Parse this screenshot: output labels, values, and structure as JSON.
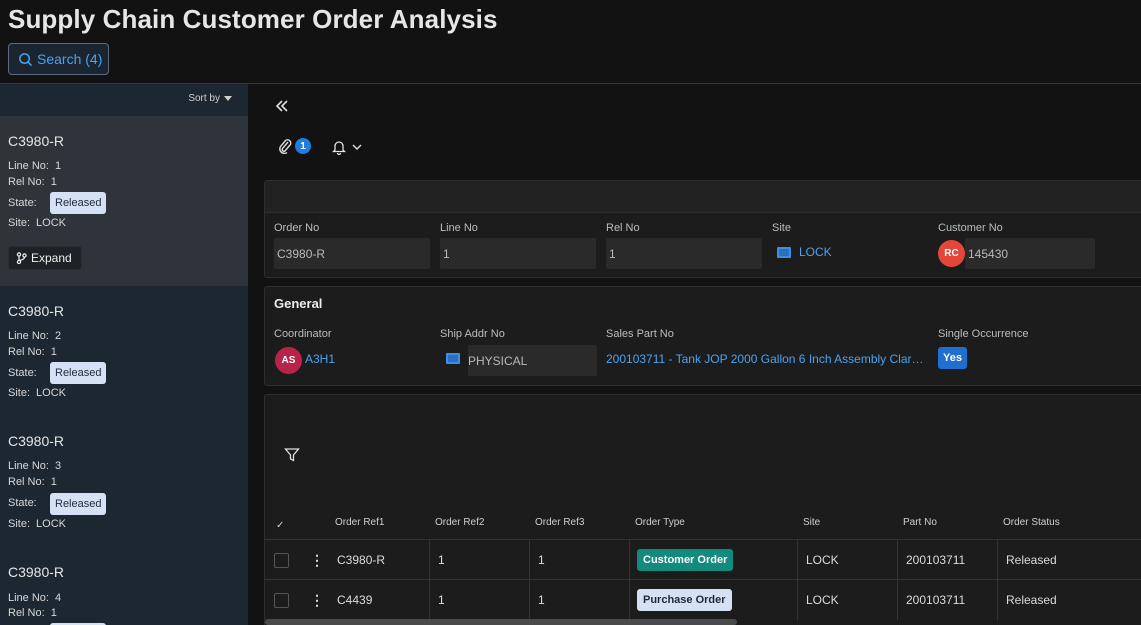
{
  "app": {
    "title": "Supply Chain Customer Order Analysis",
    "search_label": "Search (4)"
  },
  "sidebar": {
    "sort_label": "Sort by",
    "labels": {
      "line_no": "Line No:",
      "rel_no": "Rel No:",
      "state": "State:",
      "site": "Site:"
    },
    "expand_label": "Expand",
    "cards": [
      {
        "title": "C3980-R",
        "line_no": "1",
        "rel_no": "1",
        "state": "Released",
        "site": "LOCK"
      },
      {
        "title": "C3980-R",
        "line_no": "2",
        "rel_no": "1",
        "state": "Released",
        "site": "LOCK"
      },
      {
        "title": "C3980-R",
        "line_no": "3",
        "rel_no": "1",
        "state": "Released",
        "site": "LOCK"
      },
      {
        "title": "C3980-R",
        "line_no": "4",
        "rel_no": "1"
      }
    ]
  },
  "toolbar": {
    "attachment_count": "1"
  },
  "header_panel": {
    "order_no": {
      "label": "Order No",
      "value": "C3980-R"
    },
    "line_no": {
      "label": "Line No",
      "value": "1"
    },
    "rel_no": {
      "label": "Rel No",
      "value": "1"
    },
    "site": {
      "label": "Site",
      "value": "LOCK"
    },
    "customer_no": {
      "label": "Customer No",
      "avatar": "RC",
      "value": "145430",
      "avatar_color": "#e2473a"
    }
  },
  "general": {
    "title": "General",
    "coordinator": {
      "label": "Coordinator",
      "avatar": "AS",
      "value": "A3H1",
      "avatar_color": "#b8234a"
    },
    "ship_addr_no": {
      "label": "Ship Addr No",
      "value": "PHYSICAL"
    },
    "sales_part_no": {
      "label": "Sales Part No",
      "value": "200103711 - Tank JOP 2000 Gallon 6 Inch Assembly Clar…"
    },
    "single_occurrence": {
      "label": "Single Occurrence",
      "value": "Yes"
    }
  },
  "table": {
    "check_header": "✓",
    "columns": [
      "Order Ref1",
      "Order Ref2",
      "Order Ref3",
      "Order Type",
      "Site",
      "Part No",
      "Order Status"
    ],
    "rows": [
      {
        "ref1": "C3980-R",
        "ref2": "1",
        "ref3": "1",
        "type": "Customer Order",
        "type_color": "#138a7e",
        "site": "LOCK",
        "part_no": "200103711",
        "status": "Released"
      },
      {
        "ref1": "C4439",
        "ref2": "1",
        "ref3": "1",
        "type": "Purchase Order",
        "type_color": "#d6e1f5",
        "site": "LOCK",
        "part_no": "200103711",
        "status": "Released"
      }
    ]
  }
}
